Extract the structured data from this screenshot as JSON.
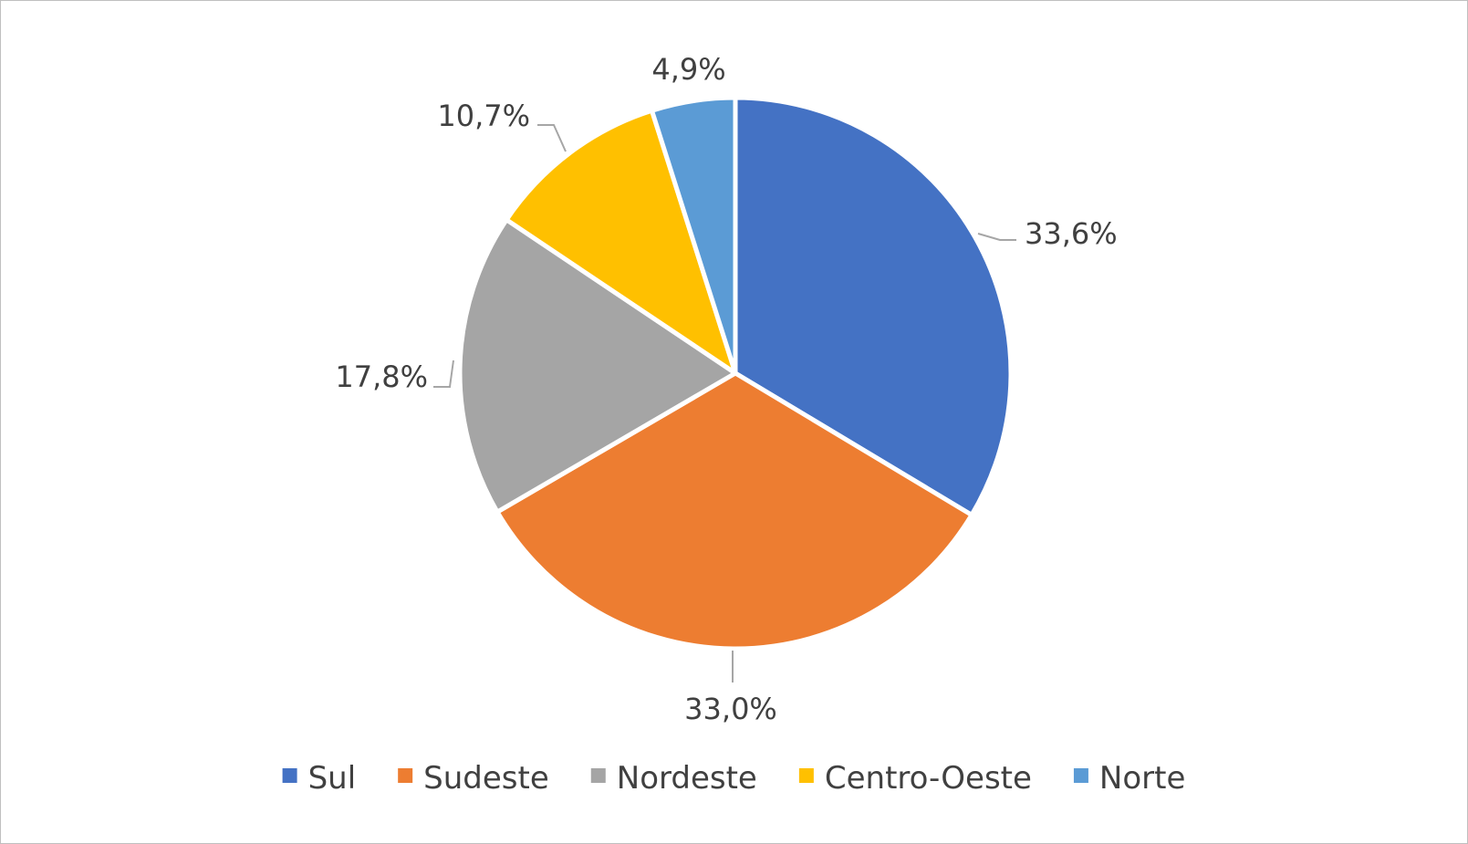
{
  "chart_data": {
    "type": "pie",
    "categories": [
      "Sul",
      "Sudeste",
      "Nordeste",
      "Centro-Oeste",
      "Norte"
    ],
    "values": [
      33.6,
      33.0,
      17.8,
      10.7,
      4.9
    ],
    "data_labels": [
      "33,6%",
      "33,0%",
      "17,8%",
      "10,7%",
      "4,9%"
    ],
    "colors": [
      "#4472C4",
      "#ED7D31",
      "#A5A5A5",
      "#FFC000",
      "#5B9BD5"
    ],
    "title": "",
    "legend_position": "bottom",
    "start_angle": "12 o'clock",
    "direction": "clockwise"
  }
}
